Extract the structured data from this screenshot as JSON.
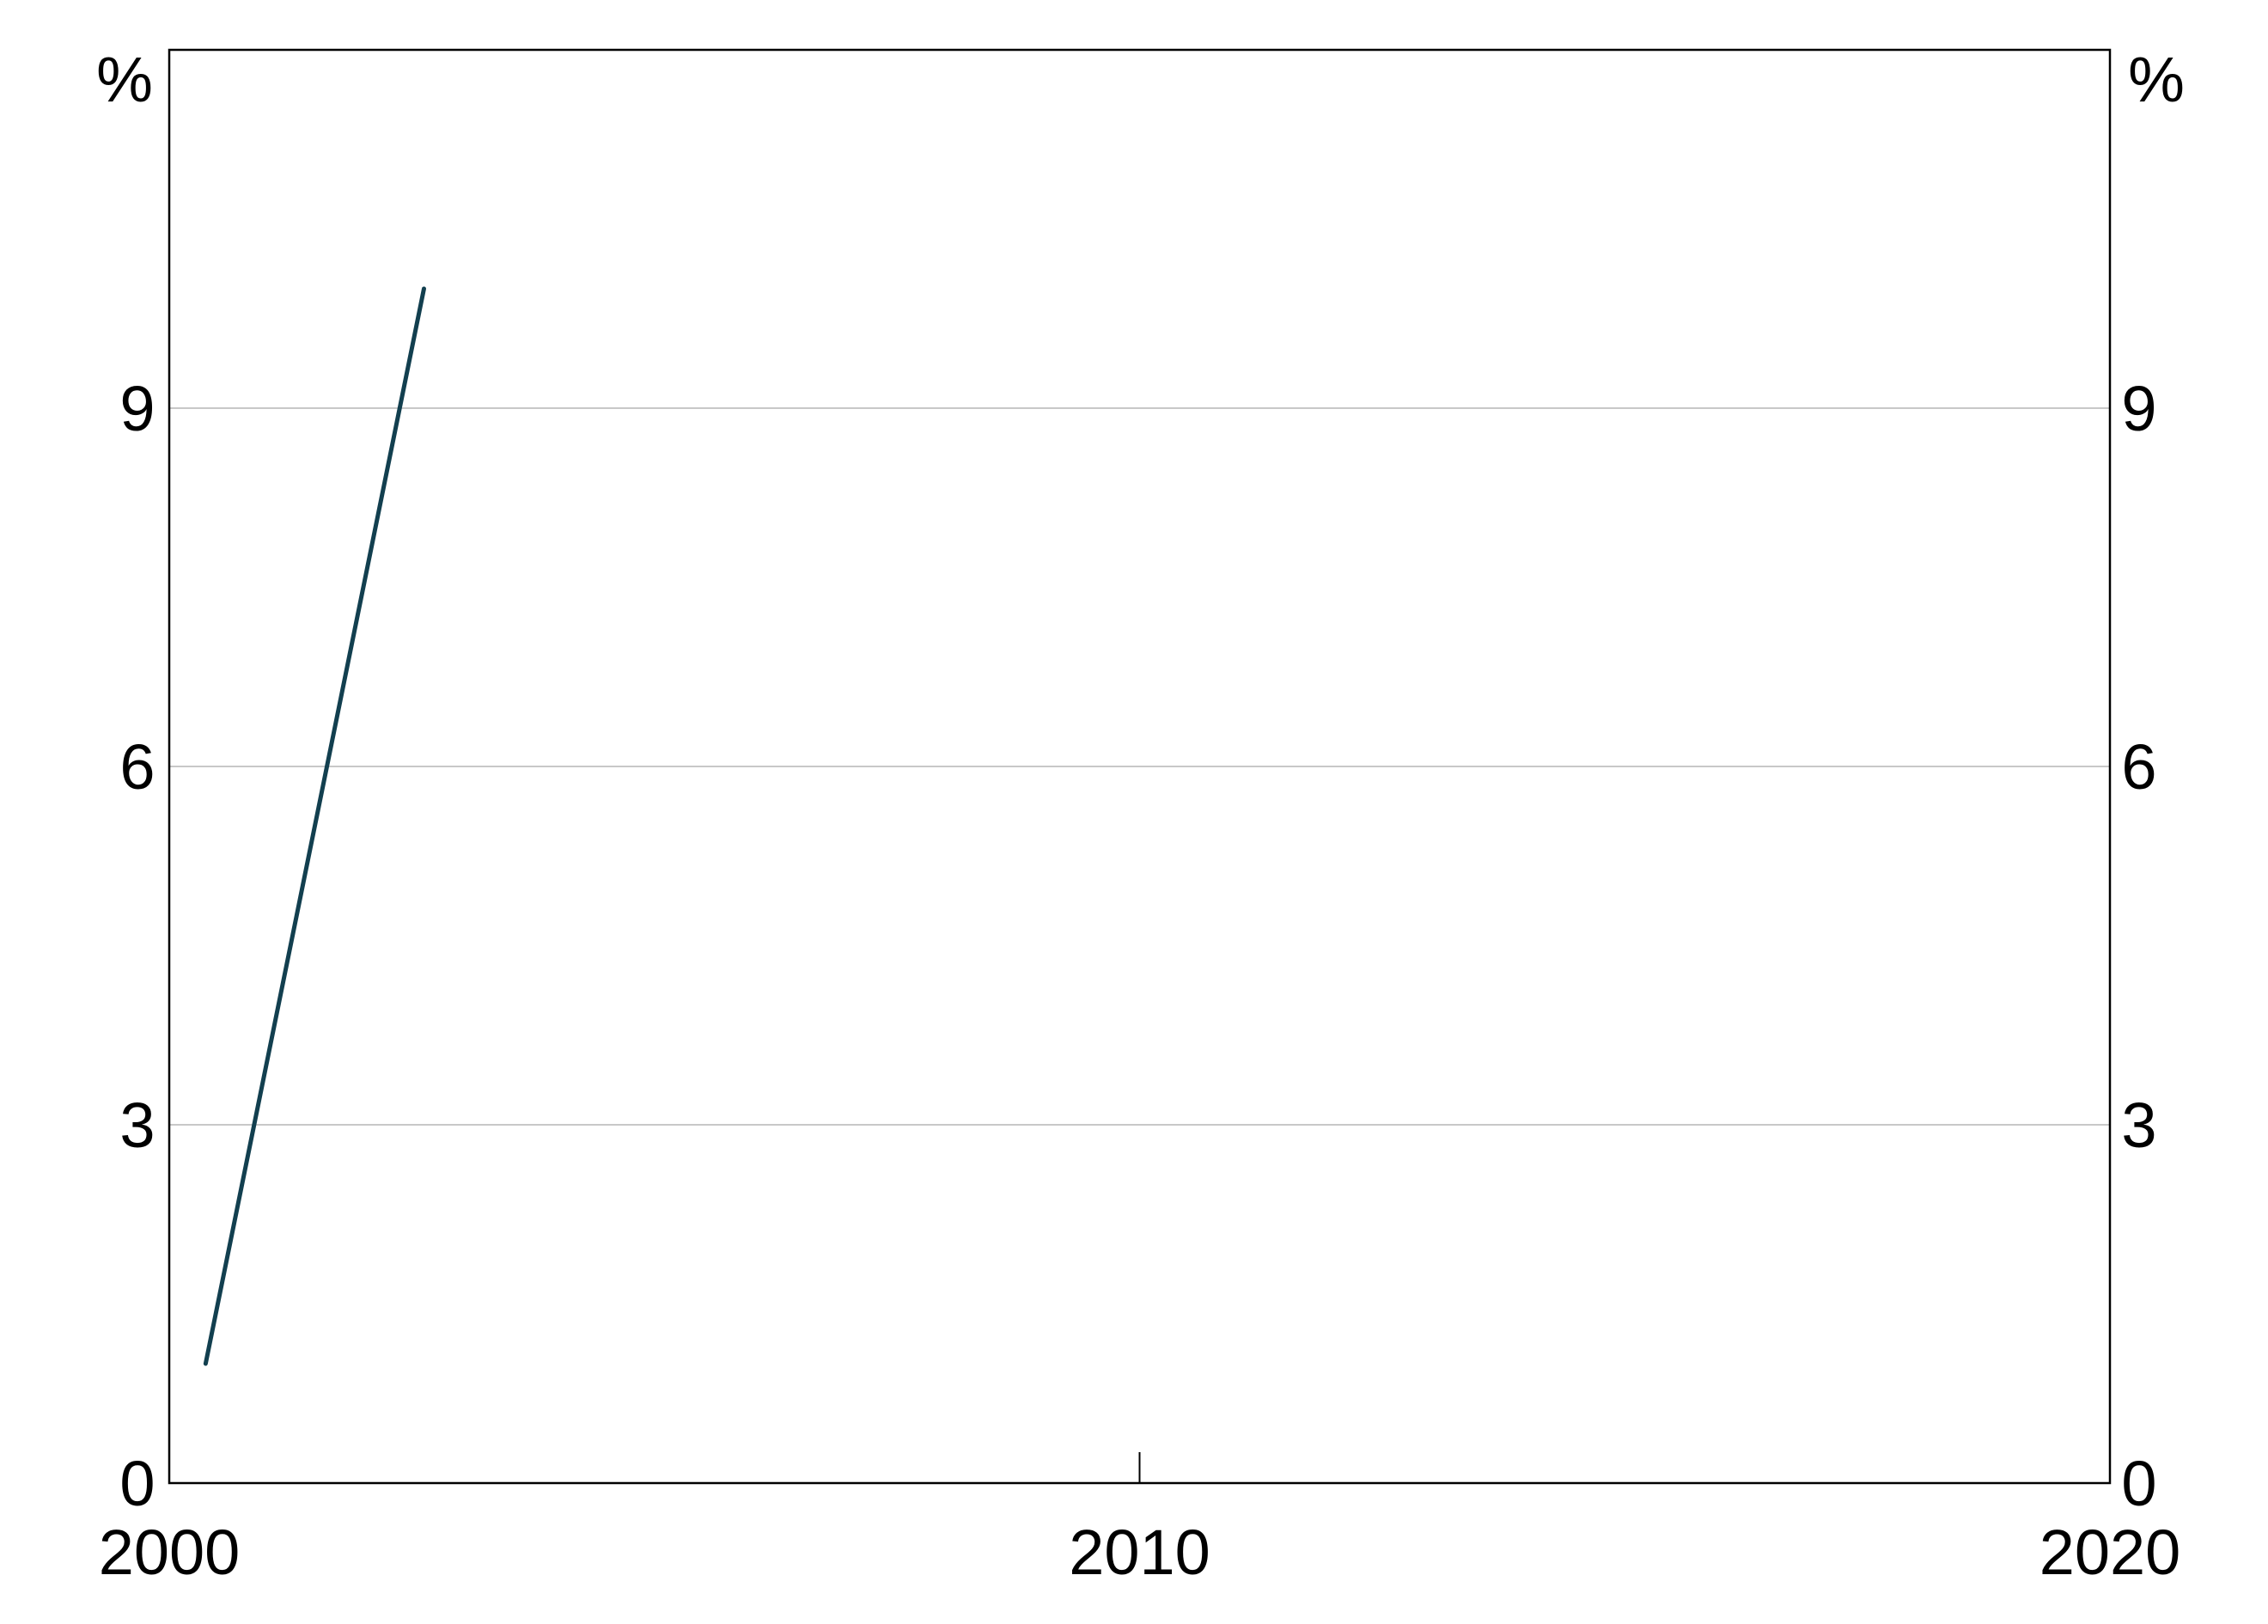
{
  "chart_data": {
    "type": "line",
    "title": "",
    "xlabel": "",
    "ylabel": "",
    "y_unit_left": "%",
    "y_unit_right": "%",
    "xlim": [
      2000,
      2020
    ],
    "ylim": [
      0,
      12
    ],
    "x_ticks": [
      2000,
      2010,
      2020
    ],
    "x_tick_labels": [
      "2000",
      "2010",
      "2020"
    ],
    "y_ticks": [
      0,
      3,
      6,
      9
    ],
    "y_tick_labels": [
      "0",
      "3",
      "6",
      "9"
    ],
    "grid": "horizontal",
    "legend": "none",
    "series": [
      {
        "color": "#123f4f",
        "points": [
          {
            "x": 2000.375,
            "y": 1.0
          },
          {
            "x": 2002.625,
            "y": 10.0
          }
        ]
      }
    ]
  },
  "colors": {
    "line": "#123f4f",
    "grid": "#c8c8c8",
    "axis": "#000000",
    "background": "#ffffff"
  }
}
